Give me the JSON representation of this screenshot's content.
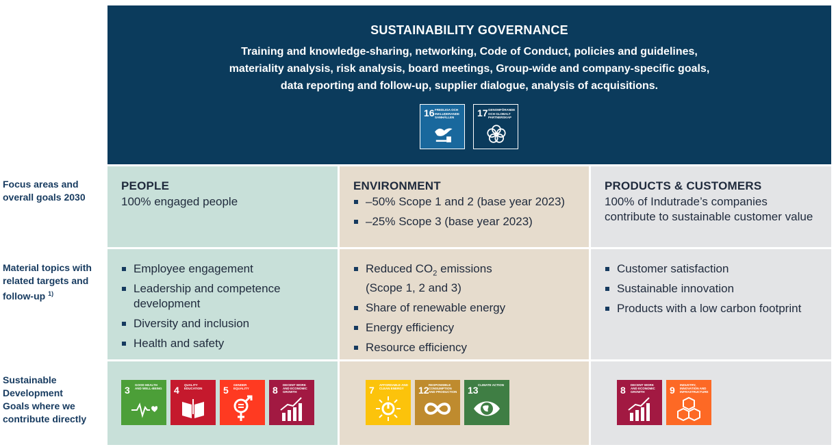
{
  "row_labels": {
    "focus": "Focus areas and overall goals 2030",
    "material": "Material topics with related targets and follow-up",
    "material_sup": "1)",
    "sdg": "Sustainable Development Goals where we contribute directly"
  },
  "governance": {
    "title": "SUSTAINABILITY GOVERNANCE",
    "line1": "Training and knowledge-sharing, networking, Code of Conduct, policies and guidelines,",
    "line2": "materiality analysis, risk analysis, board meetings, Group-wide and company-specific goals,",
    "line3": "data reporting and follow-up, supplier dialogue, analysis of acquisitions.",
    "badges": [
      {
        "num": "16",
        "label": "FREDLIGA OCH INKLUDERANDE SAMHÄLLEN",
        "icon": "dove-gavel-icon",
        "color": "#19689d"
      },
      {
        "num": "17",
        "label": "GENOMFÖRANDE OCH GLOBALT PARTNERSKAP",
        "icon": "flower-rings-icon",
        "color": "#0b3b5c"
      }
    ]
  },
  "people": {
    "title": "PEOPLE",
    "goal": "100% engaged people",
    "topics": [
      "Employee engagement",
      "Leadership and competence development",
      "Diversity and inclusion",
      "Health and safety"
    ],
    "sdgs": [
      {
        "num": "3",
        "label": "GOOD HEALTH AND WELL-BEING",
        "color": "#4c9f38",
        "icon": "heartbeat-icon"
      },
      {
        "num": "4",
        "label": "QUALITY EDUCATION",
        "color": "#c5192d",
        "icon": "book-icon"
      },
      {
        "num": "5",
        "label": "GENDER EQUALITY",
        "color": "#ff3a21",
        "icon": "gender-equality-icon"
      },
      {
        "num": "8",
        "label": "DECENT WORK AND ECONOMIC GROWTH",
        "color": "#a21942",
        "icon": "growth-chart-icon"
      }
    ]
  },
  "environment": {
    "title": "ENVIRONMENT",
    "goals": [
      "–50% Scope 1 and 2 (base year 2023)",
      "–25% Scope 3 (base year 2023)"
    ],
    "topic1_a": "Reduced CO",
    "topic1_sub": "2",
    "topic1_b": " emissions",
    "topic1_c": "(Scope 1, 2 and 3)",
    "topics": [
      "Share of renewable energy",
      "Energy efficiency",
      "Resource efficiency"
    ],
    "sdgs": [
      {
        "num": "7",
        "label": "AFFORDABLE AND CLEAN ENERGY",
        "color": "#fcc30b",
        "icon": "sun-power-icon"
      },
      {
        "num": "12",
        "label": "RESPONSIBLE CONSUMPTION AND PRODUCTION",
        "color": "#bf8b2e",
        "icon": "infinity-icon"
      },
      {
        "num": "13",
        "label": "CLIMATE ACTION",
        "color": "#3f7e44",
        "icon": "eye-globe-icon"
      }
    ]
  },
  "products": {
    "title": "PRODUCTS & CUSTOMERS",
    "goal": "100% of Indutrade’s companies contribute to sustainable customer value",
    "topics": [
      "Customer satisfaction",
      "Sustainable innovation",
      "Products with a low carbon footprint"
    ],
    "sdgs": [
      {
        "num": "8",
        "label": "DECENT WORK AND ECONOMIC GROWTH",
        "color": "#a21942",
        "icon": "growth-chart-icon"
      },
      {
        "num": "9",
        "label": "INDUSTRY, INNOVATION AND INFRASTRUCTURE",
        "color": "#fd6925",
        "icon": "cubes-icon"
      }
    ]
  }
}
